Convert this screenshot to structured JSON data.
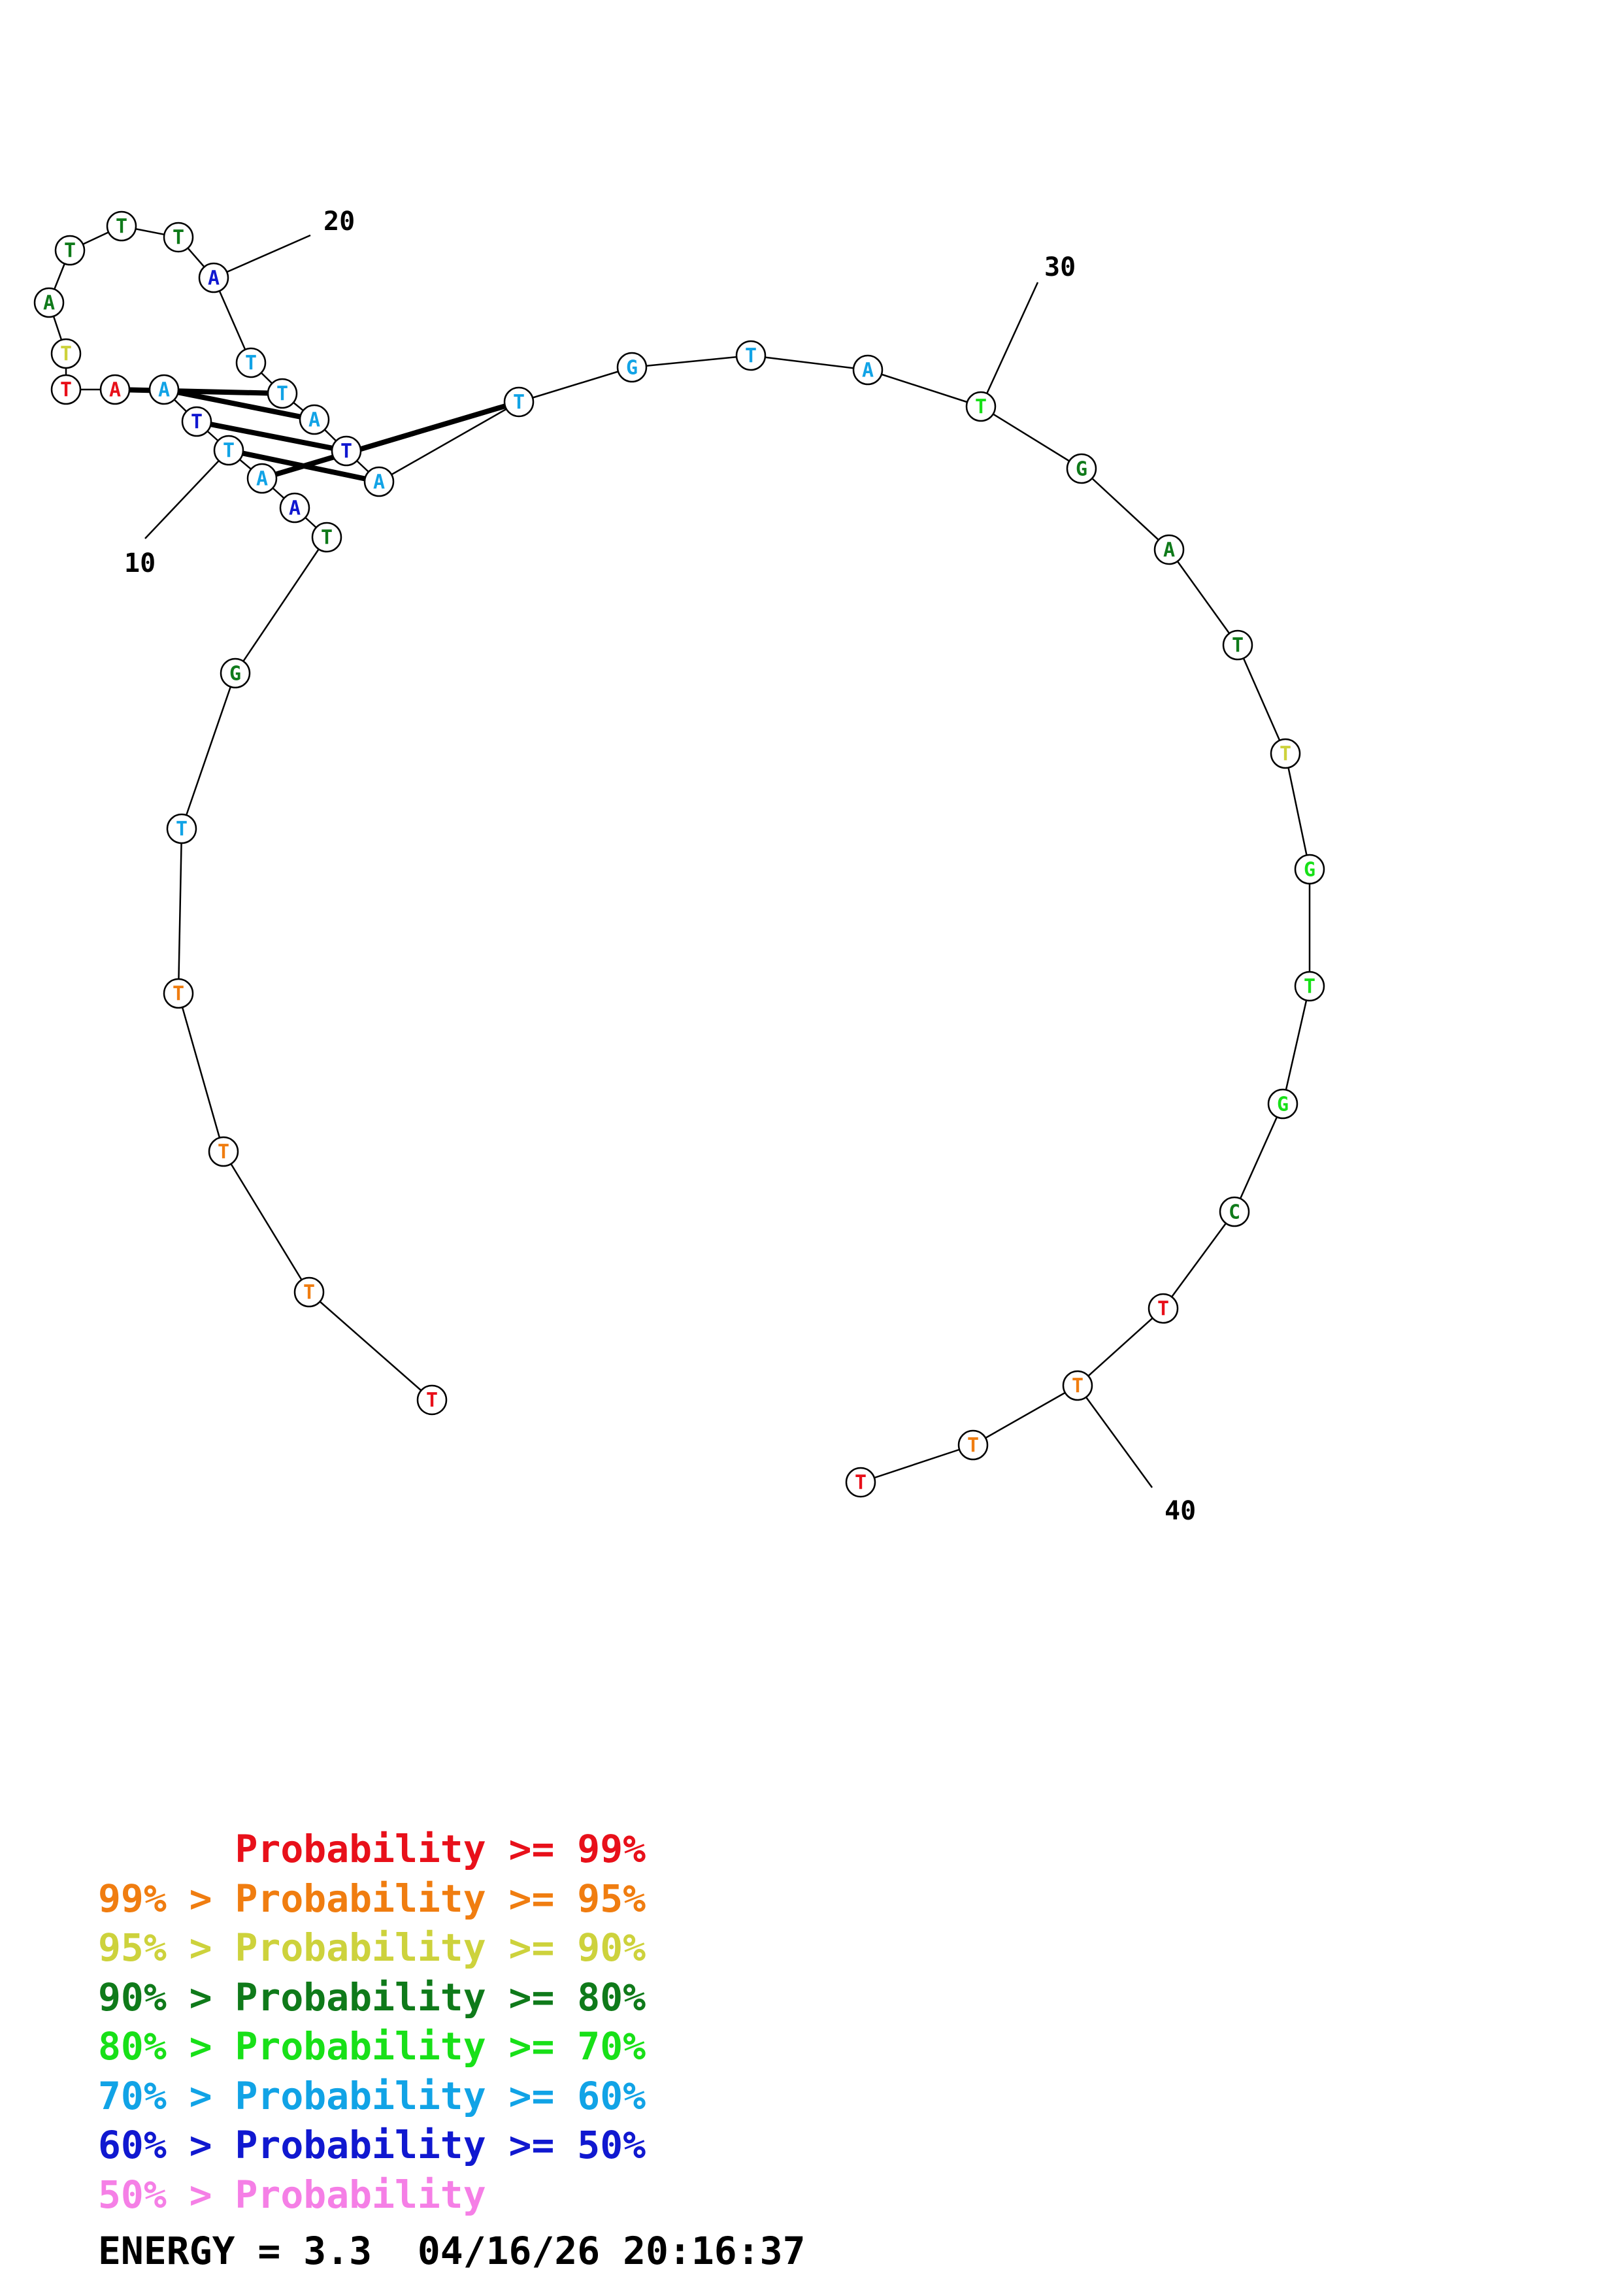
{
  "structure": {
    "sequence": [
      "T",
      "T",
      "T",
      "T",
      "T",
      "G",
      "T",
      "A",
      "A",
      "T",
      "T",
      "A",
      "A",
      "T",
      "T",
      "A",
      "T",
      "T",
      "T",
      "A",
      "T",
      "T",
      "A",
      "T",
      "A",
      "T",
      "G",
      "T",
      "A",
      "T",
      "G",
      "A",
      "T",
      "T",
      "G",
      "T",
      "G",
      "C",
      "T",
      "T",
      "T",
      "T"
    ],
    "levels": [
      0,
      1,
      1,
      1,
      5,
      3,
      3,
      6,
      5,
      5,
      6,
      5,
      0,
      0,
      2,
      3,
      3,
      3,
      3,
      6,
      5,
      5,
      5,
      6,
      5,
      5,
      5,
      5,
      5,
      4,
      3,
      3,
      3,
      2,
      4,
      4,
      4,
      3,
      0,
      1,
      1,
      0
    ],
    "pairs": [
      [
        8,
        25
      ],
      [
        9,
        24
      ],
      [
        10,
        23
      ],
      [
        11,
        22
      ],
      [
        12,
        21
      ]
    ],
    "position_labels": [
      "10",
      "20",
      "30",
      "40"
    ]
  },
  "legend": {
    "colors": [
      "#e8101a",
      "#f07d10",
      "#cdd23c",
      "#0f7a1a",
      "#18e018",
      "#11a3e6",
      "#1018d0",
      "#f57fe6"
    ],
    "lines": [
      {
        "left": "",
        "right": "Probability >= 99%"
      },
      {
        "left": "99% > ",
        "right": "Probability >= 95%"
      },
      {
        "left": "95% > ",
        "right": "Probability >= 90%"
      },
      {
        "left": "90% > ",
        "right": "Probability >= 80%"
      },
      {
        "left": "80% > ",
        "right": "Probability >= 70%"
      },
      {
        "left": "70% > ",
        "right": "Probability >= 60%"
      },
      {
        "left": "60% > ",
        "right": "Probability >= 50%"
      },
      {
        "left": "50% > ",
        "right": "Probability"
      }
    ]
  },
  "footer": {
    "energy": "ENERGY = 3.3  04/16/26 20:16:37"
  }
}
